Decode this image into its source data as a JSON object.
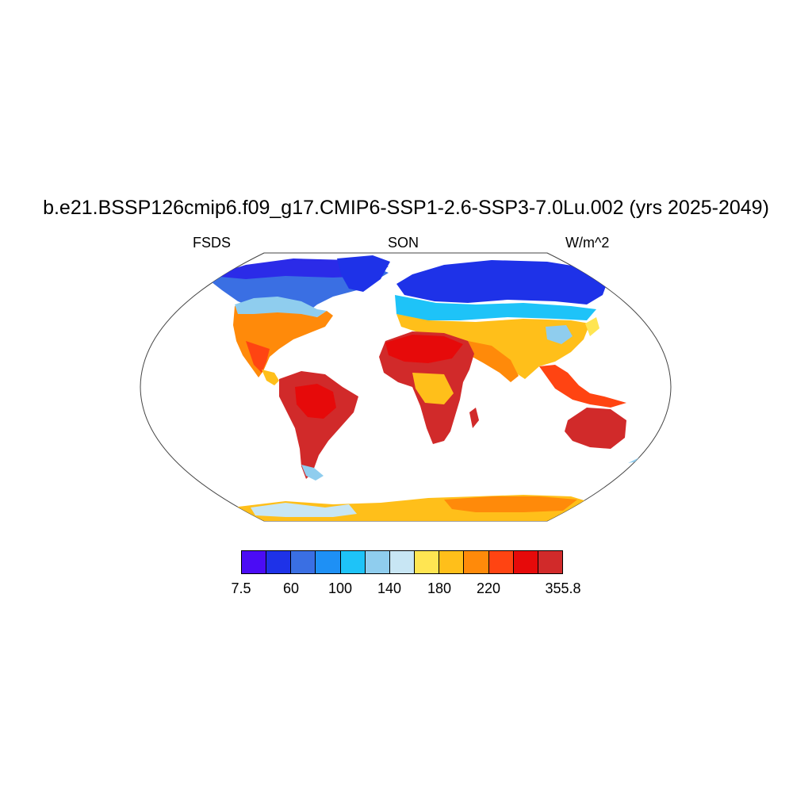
{
  "title": "b.e21.BSSP126cmip6.f09_g17.CMIP6-SSP1-2.6-SSP3-7.0Lu.002 (yrs 2025-2049)",
  "subtitle_left": "FSDS",
  "subtitle_center": "SON",
  "subtitle_right": "W/m^2",
  "colorbar": {
    "colors": [
      "#4b0cf5",
      "#1e32e8",
      "#3a6fe3",
      "#1e90f5",
      "#1ec3f8",
      "#8fcdee",
      "#c8e6f4",
      "#ffe552",
      "#ffbf1a",
      "#ff8a0a",
      "#ff4412",
      "#e60a0a",
      "#d12a2a"
    ],
    "labels": [
      "7.5",
      "60",
      "100",
      "140",
      "180",
      "220",
      "355.8"
    ]
  },
  "map_regions": [
    {
      "name": "north-america",
      "color": "#ff8a0a"
    },
    {
      "name": "south-america",
      "color": "#d12a2a"
    },
    {
      "name": "africa",
      "color": "#d12a2a"
    },
    {
      "name": "eurasia",
      "color": "#ffbf1a"
    },
    {
      "name": "australia",
      "color": "#d12a2a"
    },
    {
      "name": "antarctica",
      "color": "#ffbf1a"
    }
  ]
}
